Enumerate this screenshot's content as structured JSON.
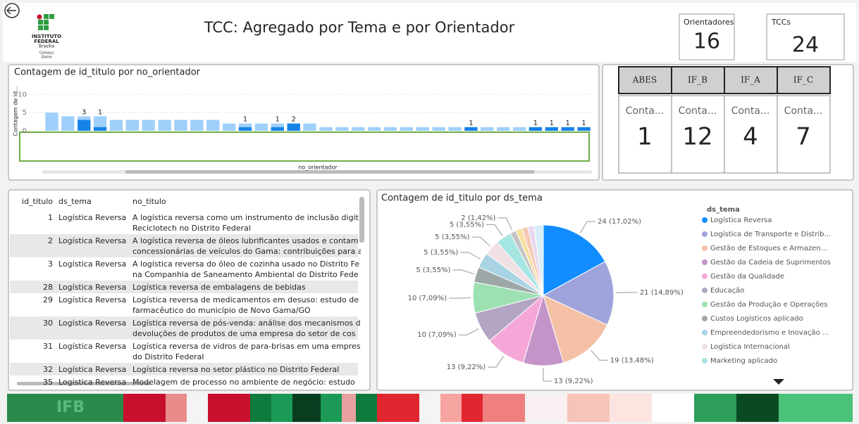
{
  "header": {
    "title": "TCC: Agregado por Tema e por Orientador",
    "logo": [
      "INSTITUTO",
      "FEDERAL",
      "Brasília",
      "Campus",
      "Gama"
    ]
  },
  "cards": [
    {
      "label": "Orientadores",
      "value": 16
    },
    {
      "label": "TCCs",
      "value": 24
    }
  ],
  "groups": [
    {
      "name": "ABES",
      "label": "Conta...",
      "value": 1
    },
    {
      "name": "IF_B",
      "label": "Conta...",
      "value": 12
    },
    {
      "name": "IF_A",
      "label": "Conta...",
      "value": 4
    },
    {
      "name": "IF_C",
      "label": "Conta...",
      "value": 7
    }
  ],
  "table": {
    "columns": [
      "id_titulo",
      "ds_tema",
      "no_titulo"
    ],
    "rows": [
      [
        1,
        "Logística Reversa",
        [
          "A logística reversa como um instrumento de inclusão digit",
          "Reciclotech no Distrito Federal"
        ]
      ],
      [
        2,
        "Logística Reversa",
        [
          "A logística reversa de óleos lubrificantes usados e contam",
          "concessionárias de veículos do Gama: contribuições para a"
        ]
      ],
      [
        3,
        "Logística Reversa",
        [
          "A logística reversa do óleo de cozinha usado no Distrito Fe",
          "na Companhia de Saneamento Ambiental do Distrito Fede"
        ]
      ],
      [
        28,
        "Logística Reversa",
        [
          "Logística reversa de embalagens de bebidas"
        ]
      ],
      [
        29,
        "Logística Reversa",
        [
          "Logística reversa de medicamentos em desuso: estudo de",
          "farmacêutico do município de Novo Gama/GO"
        ]
      ],
      [
        30,
        "Logística Reversa",
        [
          "Logística reversa de pós-venda: análise dos mecanismos d",
          "devoluções de produtos de uma empresa do setor de cos"
        ]
      ],
      [
        31,
        "Logística Reversa",
        [
          "Logística reversa de vidros de para-brisas em uma empres",
          "do Distrito Federal"
        ]
      ],
      [
        32,
        "Logística Reversa",
        [
          "Logística reversa no setor plástico no Distrito Federal"
        ]
      ],
      [
        35,
        "Logística Reversa",
        [
          "Modelagem de processo no ambiente de negócio: estudo"
        ]
      ]
    ]
  },
  "chart_data": [
    {
      "type": "bar",
      "title": "Contagem de id_titulo por no_orientador",
      "y_label": "Contagem de id...",
      "x_label": "no_orientador",
      "ylim": [
        0,
        12
      ],
      "yticks": [
        0,
        5,
        10
      ],
      "grid": true,
      "categories": [
        null,
        null,
        null,
        null,
        null,
        null,
        null,
        null,
        null,
        null,
        null,
        null,
        null,
        null,
        null,
        null,
        null,
        null,
        null,
        null,
        null,
        null,
        null,
        null,
        null,
        null,
        null,
        null,
        null,
        null,
        null,
        null,
        null,
        null
      ],
      "series": [
        {
          "color": "#9fd0fb",
          "values": [
            5,
            4,
            4,
            4,
            3,
            3,
            3,
            3,
            3,
            3,
            3,
            2,
            2,
            2,
            2,
            2,
            2,
            1,
            1,
            1,
            1,
            1,
            1,
            1,
            1,
            1,
            1,
            1,
            1,
            1,
            1,
            1,
            1,
            1
          ]
        },
        {
          "color": "#1683e8",
          "values": [
            null,
            null,
            3,
            1,
            null,
            null,
            null,
            null,
            null,
            null,
            null,
            null,
            1,
            null,
            1,
            2,
            null,
            null,
            null,
            null,
            null,
            null,
            null,
            null,
            null,
            null,
            1,
            null,
            null,
            null,
            1,
            1,
            1,
            1
          ]
        }
      ]
    },
    {
      "type": "pie",
      "title": "Contagem de id_titulo por ds_tema",
      "legend_title": "ds_tema",
      "categories": [
        "Logística Reversa",
        "Logística de Transporte e Distrib...",
        "Gestão de Estoques e Armazen...",
        "Gestão da Cadeia de Suprimentos",
        "Gestão da Qualidade",
        "Educação",
        "Gestão da Produção e Operações",
        "Custos Logísticos aplicado",
        "Empreendedorismo e Inovação ...",
        "Logística Internacional",
        "Marketing aplicado",
        null,
        null,
        null,
        null,
        null
      ],
      "values": [
        24,
        21,
        19,
        13,
        13,
        10,
        10,
        5,
        5,
        5,
        5,
        2,
        2,
        2,
        2,
        3
      ],
      "value_labels": [
        "24 (17,02%)",
        "21 (14,89%)",
        "19 (13,48%)",
        "13 (9,22%)",
        "13 (9,22%)",
        "10 (7,09%)",
        "10 (7,09%)",
        "5 (3,55%)",
        "5 (3,55%)",
        "5 (3,55%)",
        "5 (3,55%)",
        "2 (1,42%)",
        null,
        null,
        null,
        null
      ],
      "colors": [
        "#118dff",
        "#a0a4dc",
        "#f4c1a6",
        "#c493c8",
        "#f5a8d8",
        "#b3a5c4",
        "#9de1b3",
        "#9ea8a8",
        "#a8d3e3",
        "#f0dfe3",
        "#a5e5e2",
        "#c4c4c4",
        "#f5e0a0",
        "#f6c8b4",
        "#e8d8f0",
        "#d8eef8"
      ]
    }
  ]
}
